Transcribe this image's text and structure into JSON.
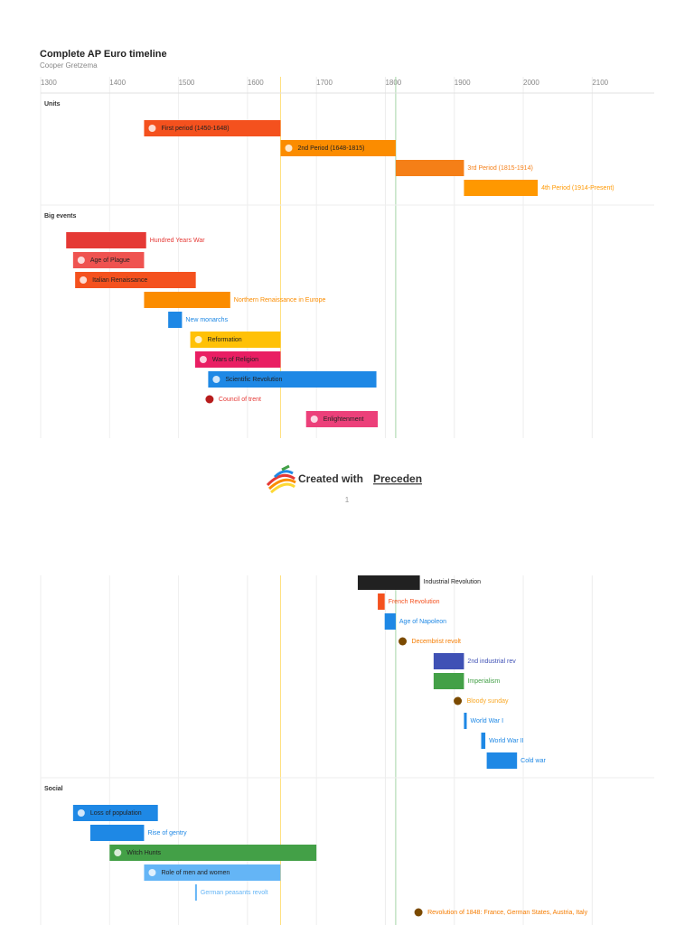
{
  "header": {
    "title": "Complete AP Euro timeline",
    "author": "Cooper Gretzema"
  },
  "axis": {
    "xlim": [
      1300,
      2190
    ],
    "ticks": [
      1300,
      1400,
      1500,
      1600,
      1700,
      1800,
      1900,
      2000,
      2100
    ]
  },
  "markers": [
    {
      "year": 1648,
      "color": "#ffe082"
    },
    {
      "year": 1815,
      "color": "#a5d6a7"
    }
  ],
  "sections": [
    {
      "title": "Units",
      "events": [
        {
          "label": "First period (1450-1648)",
          "start": 1450,
          "end": 1648,
          "color": "#f4511e",
          "label_inside": true
        },
        {
          "label": "2nd Period (1648-1815)",
          "start": 1648,
          "end": 1815,
          "color": "#fb8c00",
          "label_inside": true
        },
        {
          "label": "3rd Period (1815-1914)",
          "start": 1815,
          "end": 1914,
          "color": "#f57f17",
          "label_inside": false
        },
        {
          "label": "4th Period (1914-Present)",
          "start": 1914,
          "end": 2021,
          "color": "#ff9800",
          "label_inside": false
        }
      ]
    },
    {
      "title": "Big events",
      "events": [
        {
          "label": "Hundred Years War",
          "start": 1337,
          "end": 1453,
          "color": "#e53935",
          "label_inside": false
        },
        {
          "label": "Age of Plague",
          "start": 1347,
          "end": 1450,
          "color": "#ef5350",
          "label_inside": true
        },
        {
          "label": "Italian Renaissance",
          "start": 1350,
          "end": 1525,
          "color": "#f4511e",
          "label_inside": true
        },
        {
          "label": "Northern Renaissance in Europe",
          "start": 1450,
          "end": 1575,
          "color": "#fb8c00",
          "label_inside": false
        },
        {
          "label": "New monarchs",
          "start": 1485,
          "end": 1505,
          "color": "#1e88e5",
          "label_inside": false
        },
        {
          "label": "Reformation",
          "start": 1517,
          "end": 1648,
          "color": "#ffc107",
          "label_inside": true
        },
        {
          "label": "Wars of Religion",
          "start": 1524,
          "end": 1648,
          "color": "#e91e63",
          "label_inside": true
        },
        {
          "label": "Scientific Revolution",
          "start": 1543,
          "end": 1787,
          "color": "#1e88e5",
          "label_inside": true
        },
        {
          "label": "Council of trent",
          "start": 1545,
          "color": "#b71c1c",
          "label_color": "#e53935"
        },
        {
          "label": "Enlightenment",
          "start": 1685,
          "end": 1789,
          "color": "#ec407a",
          "label_inside": true
        },
        {
          "label": "Industrial Revolution",
          "start": 1760,
          "end": 1850,
          "color": "#212121",
          "label_inside": false
        },
        {
          "label": "French Revolution",
          "start": 1789,
          "end": 1799,
          "color": "#f4511e",
          "label_inside": false
        },
        {
          "label": "Age of Napoleon",
          "start": 1799,
          "end": 1815,
          "color": "#1e88e5",
          "label_inside": false
        },
        {
          "label": "Decembrist revolt",
          "start": 1825,
          "color": "#7b4a00",
          "label_color": "#f57c00"
        },
        {
          "label": "2nd industrial rev",
          "start": 1870,
          "end": 1914,
          "color": "#3f51b5",
          "label_inside": false
        },
        {
          "label": "Imperialism",
          "start": 1870,
          "end": 1914,
          "color": "#43a047",
          "label_inside": false
        },
        {
          "label": "Bloody sunday",
          "start": 1905,
          "color": "#7b4a00",
          "label_color": "#f9a825"
        },
        {
          "label": "World War I",
          "start": 1914,
          "end": 1918,
          "color": "#1e88e5",
          "label_inside": false
        },
        {
          "label": "World War II",
          "start": 1939,
          "end": 1945,
          "color": "#1e88e5",
          "label_inside": false
        },
        {
          "label": "Cold war",
          "start": 1947,
          "end": 1991,
          "color": "#1e88e5",
          "label_inside": false
        }
      ]
    },
    {
      "title": "Social",
      "events": [
        {
          "label": "Loss of population",
          "start": 1347,
          "end": 1470,
          "color": "#1e88e5",
          "label_inside": true
        },
        {
          "label": "Rise of gentry",
          "start": 1372,
          "end": 1450,
          "color": "#1e88e5",
          "label_inside": false
        },
        {
          "label": "Witch Hunts",
          "start": 1400,
          "end": 1700,
          "color": "#43a047",
          "label_inside": true
        },
        {
          "label": "Role of men and women",
          "start": 1450,
          "end": 1648,
          "color": "#64b5f6",
          "label_inside": true
        },
        {
          "label": "German peasants revolt",
          "start": 1524,
          "end": 1526,
          "color": "#64b5f6",
          "label_inside": false
        },
        {
          "label": "Revolution of 1848: France, German States, Austria, Italy",
          "start": 1848,
          "color": "#7b4a00",
          "label_color": "#f57c00"
        }
      ]
    }
  ],
  "footer": {
    "prefix": "Created with",
    "brand": "Preceden",
    "page": 1
  }
}
